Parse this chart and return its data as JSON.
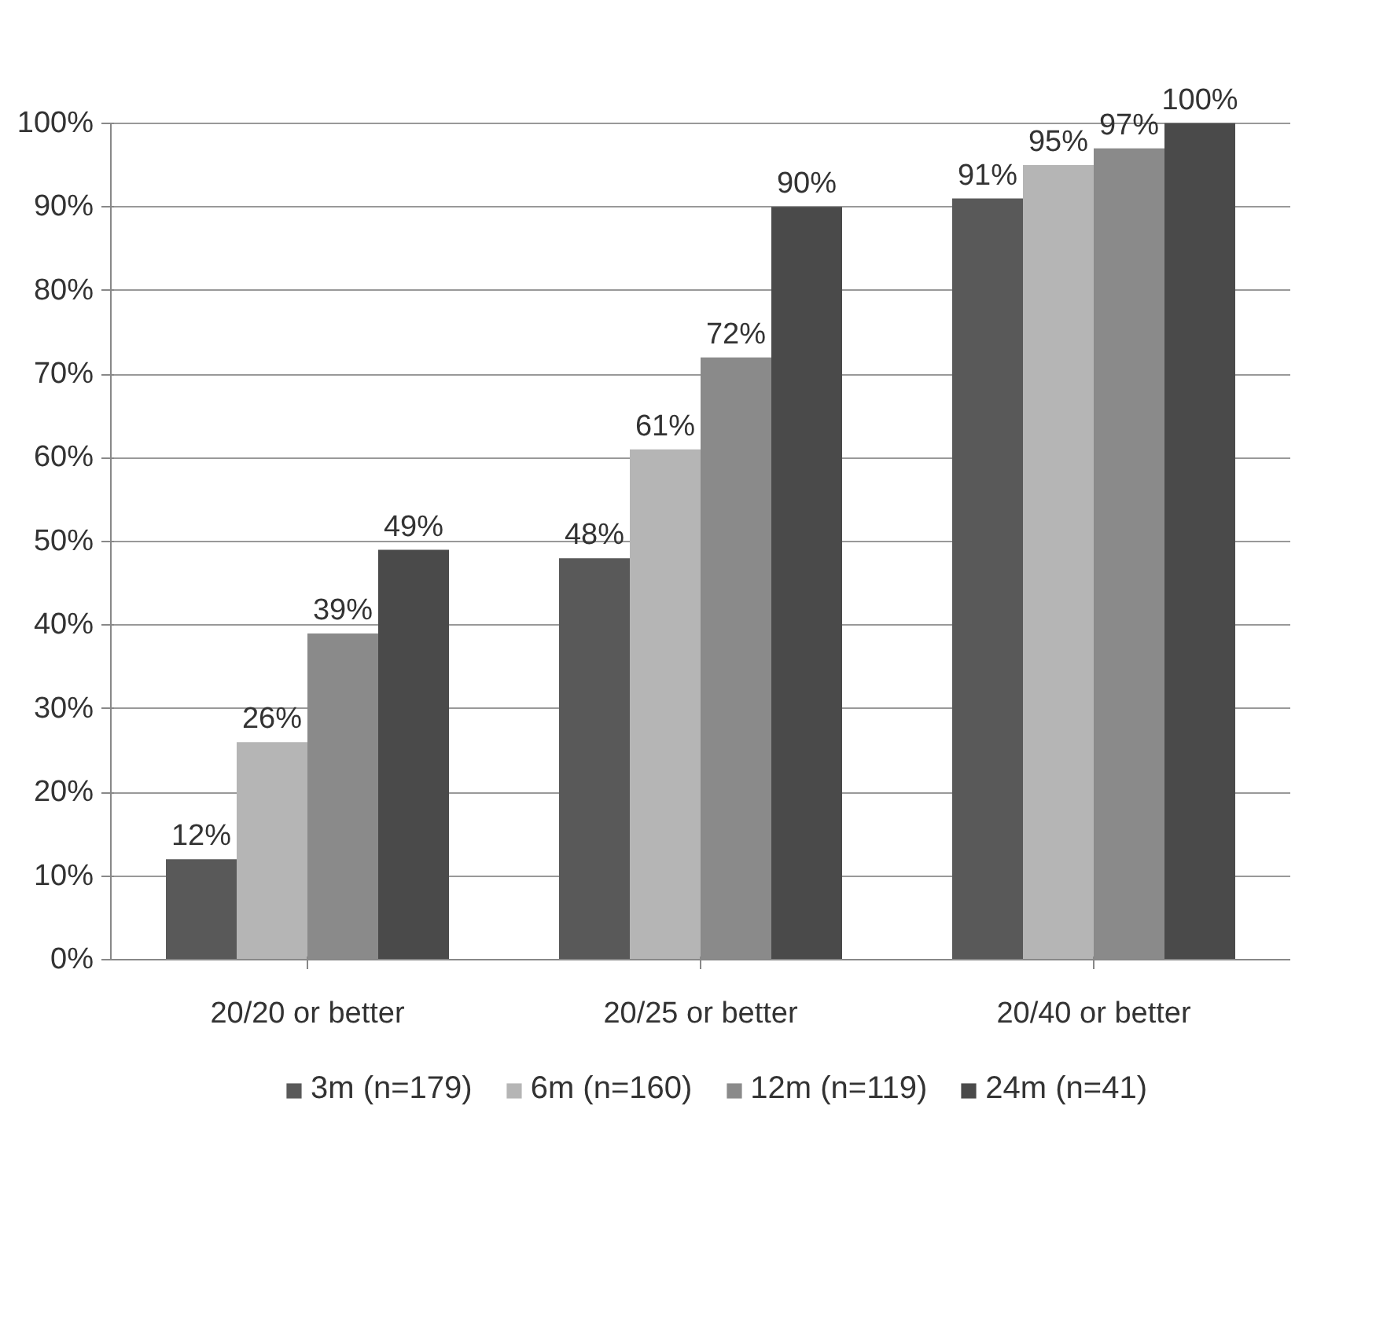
{
  "chart_data": {
    "type": "bar",
    "categories": [
      "20/20 or better",
      "20/25 or better",
      "20/40 or better"
    ],
    "series": [
      {
        "name": "3m (n=179)",
        "color": "#595959",
        "values": [
          12,
          48,
          91
        ],
        "value_labels": [
          "12%",
          "48%",
          "91%"
        ]
      },
      {
        "name": "6m (n=160)",
        "color": "#b5b5b5",
        "values": [
          26,
          61,
          95
        ],
        "value_labels": [
          "26%",
          "61%",
          "95%"
        ]
      },
      {
        "name": "12m (n=119)",
        "color": "#8a8a8a",
        "values": [
          39,
          72,
          97
        ],
        "value_labels": [
          "39%",
          "72%",
          "97%"
        ]
      },
      {
        "name": "24m (n=41)",
        "color": "#4a4a4a",
        "values": [
          49,
          90,
          100
        ],
        "value_labels": [
          "49%",
          "90%",
          "100%"
        ]
      }
    ],
    "ylim": [
      0,
      100
    ],
    "yticks": [
      {
        "value": 0,
        "label": "0%"
      },
      {
        "value": 10,
        "label": "10%"
      },
      {
        "value": 20,
        "label": "20%"
      },
      {
        "value": 30,
        "label": "30%"
      },
      {
        "value": 40,
        "label": "40%"
      },
      {
        "value": 50,
        "label": "50%"
      },
      {
        "value": 60,
        "label": "60%"
      },
      {
        "value": 70,
        "label": "70%"
      },
      {
        "value": 80,
        "label": "80%"
      },
      {
        "value": 90,
        "label": "90%"
      },
      {
        "value": 100,
        "label": "100%"
      }
    ],
    "grid": "y",
    "legend": "bottom"
  }
}
